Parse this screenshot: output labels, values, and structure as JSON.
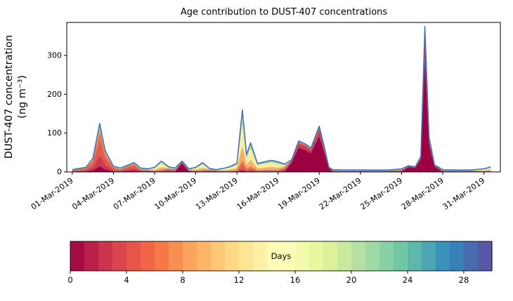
{
  "chart_data": {
    "type": "area",
    "stacked": true,
    "title": "Age contribution to DUST-407 concentrations",
    "ylabel": "DUST-407 concentration (ng m⁻³)",
    "ylabel_lines": [
      "DUST-407 concentration",
      "(ng m⁻³)"
    ],
    "xlabel": "",
    "ylim": [
      0,
      385
    ],
    "yticks": [
      0,
      100,
      200,
      300
    ],
    "xlim": [
      0.6,
      32.2
    ],
    "xtick_positions": [
      1,
      4,
      7,
      10,
      13,
      16,
      19,
      22,
      25,
      28,
      31
    ],
    "xtick_labels": [
      "01-Mar-2019",
      "04-Mar-2019",
      "07-Mar-2019",
      "10-Mar-2019",
      "13-Mar-2019",
      "16-Mar-2019",
      "19-Mar-2019",
      "22-Mar-2019",
      "25-Mar-2019",
      "28-Mar-2019",
      "31-Mar-2019"
    ],
    "grid": false,
    "legend": "none",
    "envelope_color": "#3a6fb7",
    "background": "#ffffff",
    "age_bins": [
      {
        "label": "age-0-2-days",
        "color": "#9e0142"
      },
      {
        "label": "age-2-4-days",
        "color": "#d0384d"
      },
      {
        "label": "age-4-6-days",
        "color": "#e8584a"
      },
      {
        "label": "age-6-8-days",
        "color": "#f46d43"
      },
      {
        "label": "age-8-12-days",
        "color": "#fdae61"
      },
      {
        "label": "age-12-16-days",
        "color": "#feec9f"
      },
      {
        "label": "age-16-24-days",
        "color": "#b7e2a1"
      },
      {
        "label": "age-24-30-days",
        "color": "#3288bd"
      }
    ],
    "profiles": {
      "fresh": [
        0.78,
        0.12,
        0.05,
        0.02,
        0.01,
        0.005,
        0.01,
        0.005
      ],
      "red_orange": [
        0.12,
        0.22,
        0.28,
        0.2,
        0.08,
        0.03,
        0.04,
        0.03
      ],
      "orange": [
        0.08,
        0.15,
        0.3,
        0.25,
        0.12,
        0.04,
        0.03,
        0.03
      ],
      "yellow": [
        0.02,
        0.03,
        0.05,
        0.08,
        0.22,
        0.42,
        0.12,
        0.06
      ],
      "mixed": [
        0.12,
        0.14,
        0.16,
        0.16,
        0.14,
        0.12,
        0.1,
        0.06
      ]
    },
    "points": {
      "x": [
        1.0,
        1.5,
        2.0,
        2.5,
        3.0,
        3.4,
        4.0,
        4.5,
        5.0,
        5.5,
        6.0,
        6.5,
        7.0,
        7.5,
        8.0,
        8.5,
        9.0,
        9.5,
        10.0,
        10.5,
        11.0,
        11.5,
        12.0,
        12.5,
        13.0,
        13.4,
        13.7,
        14.0,
        14.5,
        15.0,
        15.5,
        16.0,
        16.5,
        17.0,
        17.5,
        18.0,
        18.4,
        18.8,
        19.0,
        19.4,
        19.7,
        20.0,
        21.0,
        22.0,
        23.0,
        24.0,
        25.0,
        25.5,
        26.0,
        26.4,
        26.7,
        27.0,
        27.4,
        28.0,
        29.0,
        30.0,
        31.0,
        31.5
      ],
      "total": [
        6,
        9,
        12,
        35,
        125,
        55,
        15,
        10,
        17,
        24,
        10,
        8,
        12,
        28,
        14,
        10,
        28,
        8,
        12,
        24,
        9,
        6,
        9,
        14,
        22,
        160,
        45,
        75,
        22,
        26,
        30,
        26,
        20,
        32,
        80,
        72,
        62,
        100,
        118,
        60,
        12,
        6,
        5,
        5,
        5,
        5,
        8,
        16,
        13,
        40,
        375,
        90,
        18,
        6,
        5,
        5,
        8,
        13
      ],
      "profile": [
        "mixed",
        "orange",
        "red_orange",
        "red_orange",
        "red_orange",
        "red_orange",
        "orange",
        "mixed",
        "red_orange",
        "red_orange",
        "mixed",
        "mixed",
        "yellow",
        "yellow",
        "mixed",
        "mixed",
        "fresh",
        "mixed",
        "yellow",
        "yellow",
        "mixed",
        "mixed",
        "yellow",
        "yellow",
        "yellow",
        "yellow",
        "yellow",
        "yellow",
        "yellow",
        "yellow",
        "yellow",
        "yellow",
        "mixed",
        "fresh",
        "fresh",
        "fresh",
        "fresh",
        "fresh",
        "fresh",
        "fresh",
        "fresh",
        "mixed",
        "mixed",
        "mixed",
        "mixed",
        "mixed",
        "mixed",
        "fresh",
        "fresh",
        "fresh",
        "fresh",
        "fresh",
        "fresh",
        "mixed",
        "mixed",
        "mixed",
        "yellow",
        "yellow"
      ]
    },
    "colorbar": {
      "label": "Days",
      "ticks": [
        0,
        4,
        8,
        12,
        16,
        20,
        24,
        28
      ],
      "range": [
        0,
        30
      ],
      "colormap": "Spectral",
      "n_cells": 30,
      "spectral_stops": [
        "#9e0142",
        "#d53e4f",
        "#f46d43",
        "#fdae61",
        "#fee08b",
        "#ffffbf",
        "#e6f598",
        "#abdda4",
        "#66c2a5",
        "#3288bd",
        "#5e4fa2"
      ]
    }
  }
}
